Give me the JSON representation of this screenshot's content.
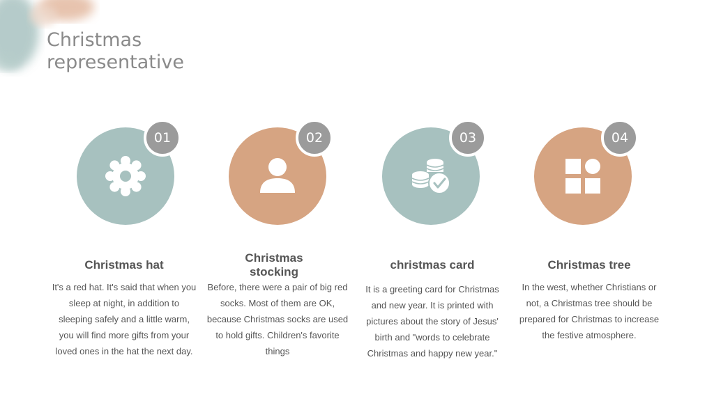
{
  "slide": {
    "title_line1": "Christmas",
    "title_line2": "representative"
  },
  "colors": {
    "teal": "#a7c1bf",
    "orange": "#d6a482",
    "badge": "#9b9b9b",
    "text": "#555555",
    "title": "#8a8a8a"
  },
  "items": [
    {
      "number": "01",
      "icon": "gear-icon",
      "title": "Christmas hat",
      "description": "It's a red hat. It's said that when you sleep at night, in addition to sleeping safely and a little warm, you will find more gifts from your loved ones in the hat the next day."
    },
    {
      "number": "02",
      "icon": "user-icon",
      "title": "Christmas stocking",
      "description": "Before, there were a pair of big red socks. Most of them are OK, because Christmas socks are used to hold gifts. Children's favorite things"
    },
    {
      "number": "03",
      "icon": "coins-check-icon",
      "title": "christmas card",
      "description": "It is a greeting card for Christmas and new year. It is printed with pictures about the story of Jesus' birth and \"words to celebrate Christmas and happy new year.\""
    },
    {
      "number": "04",
      "icon": "grid-icon",
      "title": "Christmas tree",
      "description": "In the west, whether Christians or not, a Christmas tree should be prepared for Christmas to increase the festive atmosphere."
    }
  ]
}
